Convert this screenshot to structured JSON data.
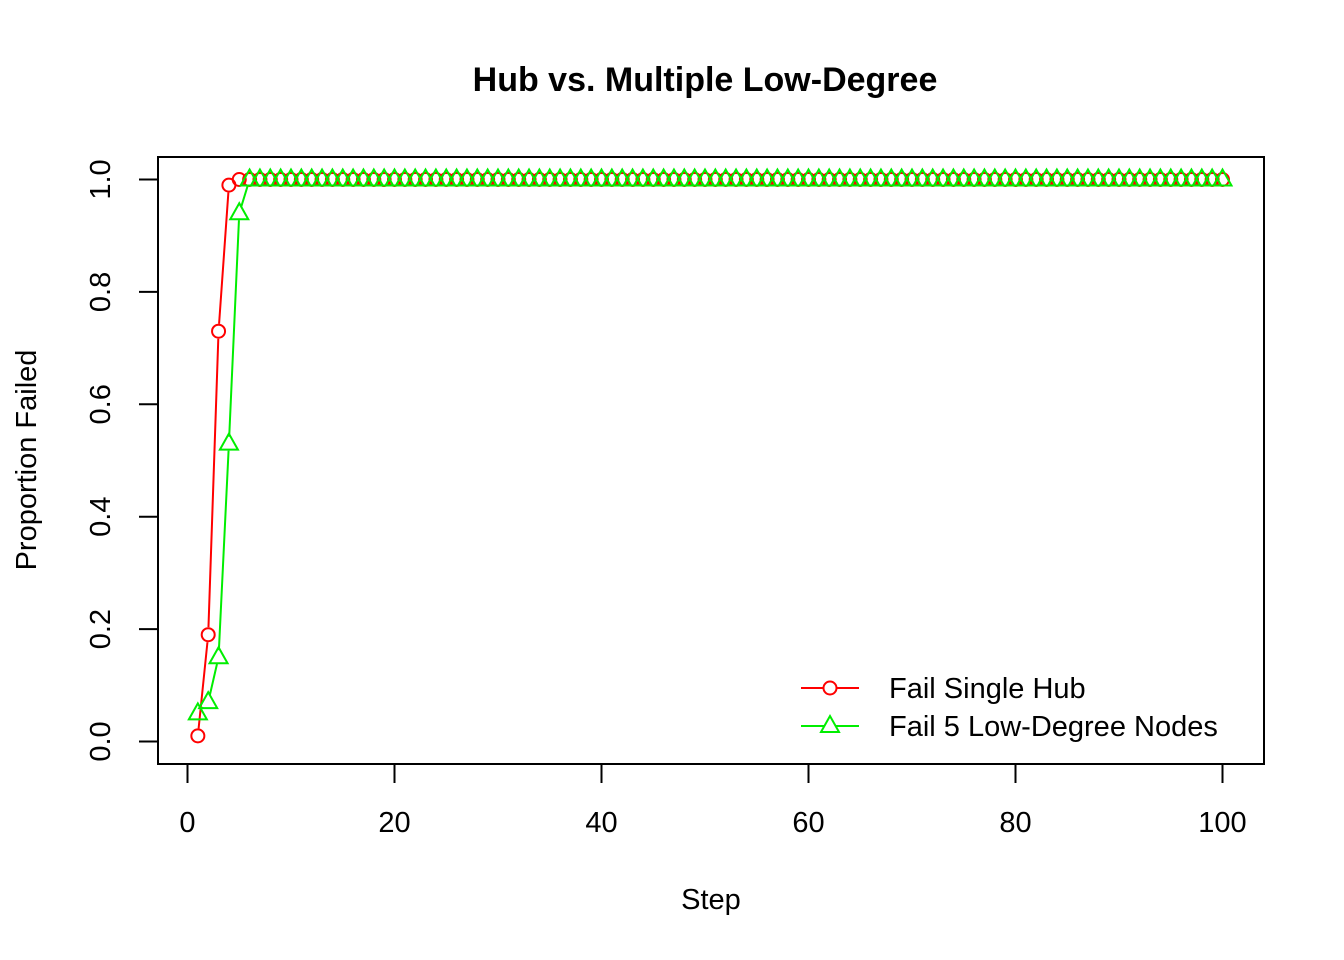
{
  "chart_data": {
    "type": "line",
    "title": "Hub vs. Multiple Low-Degree",
    "xlabel": "Step",
    "ylabel": "Proportion Failed",
    "xlim": [
      0,
      100
    ],
    "ylim": [
      0,
      1
    ],
    "x_ticks": [
      "0",
      "20",
      "40",
      "60",
      "80",
      "100"
    ],
    "y_ticks": [
      "0.0",
      "0.2",
      "0.4",
      "0.6",
      "0.8",
      "1.0"
    ],
    "grid": false,
    "legend_position": "bottom-right",
    "x_start": 1,
    "x_end": 100,
    "series": [
      {
        "name": "Fail Single Hub",
        "color": "#ff0000",
        "marker": "circle",
        "initial_values": [
          0.01,
          0.19,
          0.73,
          0.99,
          1.0
        ],
        "steady_value": 1.0
      },
      {
        "name": "Fail 5 Low-Degree Nodes",
        "color": "#00ee00",
        "marker": "triangle",
        "initial_values": [
          0.05,
          0.07,
          0.15,
          0.53,
          0.94,
          1.0
        ],
        "steady_value": 1.0
      }
    ]
  }
}
